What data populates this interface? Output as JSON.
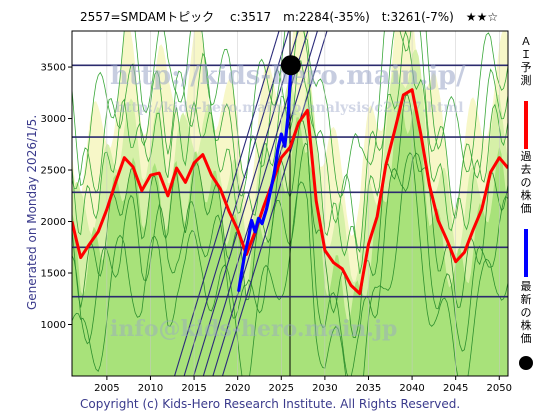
{
  "chart_data": {
    "type": "line",
    "title": "2557=SMDAMトピック　 c:3517　m:2284(-35%)　t:3261(-7%)　★★☆",
    "side_label": "Generated on Monday 2026/1/5.",
    "copyright": "Copyright (c) Kids-Hero Research Institute. All Rights Reserved.",
    "watermarks": [
      "http://kids-hero.main.jp/",
      "http://kids-hero.main.jp/analysis/c2557.html",
      "info@kids-hero.main.jp"
    ],
    "xlim": [
      2001,
      2051
    ],
    "ylim": [
      500,
      3850
    ],
    "x_ticks": [
      2005,
      2010,
      2015,
      2020,
      2025,
      2030,
      2035,
      2040,
      2045,
      2050
    ],
    "y_ticks": [
      1000,
      1500,
      2000,
      2500,
      3000,
      3500
    ],
    "horizontal_lines": [
      3517,
      2820,
      2284,
      1750,
      1270
    ],
    "current_year": 2026,
    "legend": [
      {
        "label": "ＡＩ予測",
        "color": "#ff0000"
      },
      {
        "label": "過去の株価",
        "color": "#0000ff"
      },
      {
        "label": "最新の株価",
        "color": "#000000"
      }
    ],
    "latest_point": {
      "x": 2026.1,
      "y": 3517
    },
    "series": [
      {
        "name": "ＡＩ予測",
        "color": "#ff0000",
        "x": [
          2001,
          2001.5,
          2002,
          2003,
          2004,
          2005,
          2006,
          2007,
          2008,
          2009,
          2010,
          2011,
          2012,
          2013,
          2014,
          2015,
          2016,
          2017,
          2018,
          2019,
          2020,
          2021,
          2022,
          2023,
          2024,
          2025,
          2026,
          2027,
          2028,
          2029,
          2030,
          2031,
          2032,
          2033,
          2034,
          2035,
          2036,
          2037,
          2038,
          2039,
          2040,
          2041,
          2042,
          2043,
          2044,
          2045,
          2046,
          2047,
          2048,
          2049,
          2050,
          2051
        ],
        "y": [
          2000,
          1820,
          1650,
          1780,
          1900,
          2120,
          2380,
          2620,
          2530,
          2300,
          2450,
          2470,
          2250,
          2520,
          2380,
          2570,
          2650,
          2450,
          2320,
          2100,
          1920,
          1680,
          1900,
          2150,
          2380,
          2620,
          2720,
          2960,
          3080,
          2200,
          1720,
          1600,
          1540,
          1380,
          1300,
          1780,
          2050,
          2550,
          2880,
          3230,
          3280,
          2850,
          2350,
          2010,
          1820,
          1610,
          1700,
          1920,
          2120,
          2480,
          2620,
          2520
        ]
      },
      {
        "name": "過去の株価",
        "color": "#0000ff",
        "x": [
          2020.1,
          2020.4,
          2020.8,
          2021.2,
          2021.6,
          2022,
          2022.4,
          2022.8,
          2023.3,
          2023.8,
          2024.2,
          2024.6,
          2025,
          2025.4,
          2025.8,
          2026.1
        ],
        "y": [
          1320,
          1480,
          1680,
          1820,
          2010,
          1900,
          2030,
          1980,
          2120,
          2310,
          2470,
          2700,
          2850,
          2730,
          3050,
          3517
        ]
      }
    ]
  }
}
